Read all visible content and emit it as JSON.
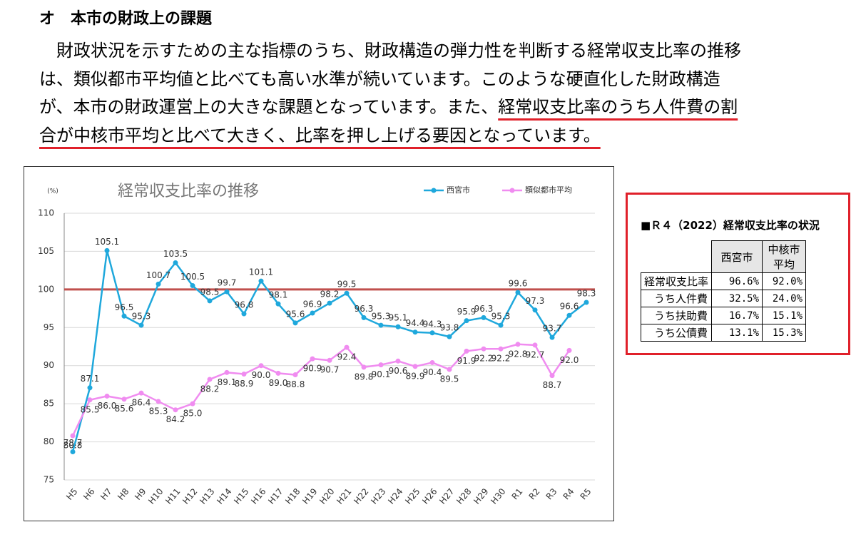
{
  "heading": "オ　本市の財政上の課題",
  "paragraph": {
    "plain": "財政状況を示すための主な指標のうち、財政構造の弾力性を判断する経常収支比率の推移は、類似都市平均値と比べても高い水準が続いています。このような硬直化した財政構造が、本市の財政運営上の大きな課題となっています。また、",
    "underlined": "経常収支比率のうち人件費の割合が中核市平均と比べて大きく、比率を押し上げる要因となっています。"
  },
  "chart_data": {
    "type": "line",
    "title": "経常収支比率の推移",
    "y_label": "(%)",
    "categories": [
      "H5",
      "H6",
      "H7",
      "H8",
      "H9",
      "H10",
      "H11",
      "H12",
      "H13",
      "H14",
      "H15",
      "H16",
      "H17",
      "H18",
      "H19",
      "H20",
      "H21",
      "H22",
      "H23",
      "H24",
      "H25",
      "H26",
      "H27",
      "H28",
      "H29",
      "H30",
      "R1",
      "R2",
      "R3",
      "R4",
      "R5"
    ],
    "series": [
      {
        "name": "西宮市",
        "color": "#1fa8dc",
        "values": [
          78.7,
          87.1,
          105.1,
          96.5,
          95.3,
          100.7,
          103.5,
          100.5,
          98.5,
          99.7,
          96.8,
          101.1,
          98.1,
          95.6,
          96.9,
          98.2,
          99.5,
          96.3,
          95.3,
          95.1,
          94.4,
          94.3,
          93.8,
          95.9,
          96.3,
          95.3,
          99.6,
          97.3,
          93.7,
          96.6,
          98.3
        ],
        "value_labels": [
          "78.7",
          "87.1",
          "105.1",
          "96.5",
          "95.3",
          "100.7",
          "103.5",
          "100.5",
          "98.5",
          "99.7",
          "96.8",
          "101.1",
          "98.1",
          "95.6",
          "96.9",
          "98.2",
          "99.5",
          "96.3",
          "95.3",
          "95.1",
          "94.4",
          "94.3",
          "93.8",
          "95.9",
          "96.3",
          "95.3",
          "99.6",
          "97.3",
          "93.7",
          "96.6",
          "98.3"
        ]
      },
      {
        "name": "類似都市平均",
        "color": "#f08cf0",
        "values": [
          80.8,
          85.5,
          86.0,
          85.6,
          86.4,
          85.3,
          84.2,
          85.0,
          88.2,
          89.1,
          88.9,
          90.0,
          89.0,
          88.8,
          90.9,
          90.7,
          92.4,
          89.8,
          90.1,
          90.6,
          89.9,
          90.4,
          89.5,
          91.9,
          92.2,
          92.2,
          92.8,
          92.7,
          88.7,
          92.0,
          null
        ],
        "value_labels": [
          "80.8",
          "85.5",
          "86.0",
          "85.6",
          "86.4",
          "85.3",
          "84.2",
          "85.0",
          "88.2",
          "89.1",
          "88.9",
          "90.0",
          "89.0",
          "88.8",
          "90.9",
          "90.7",
          "92.4",
          "89.8",
          "90.1",
          "90.6",
          "89.9",
          "90.4",
          "89.5",
          "91.9",
          "92.2",
          "92.2",
          "92.8",
          "92.7",
          "88.7",
          "92.0",
          null
        ]
      }
    ],
    "reference_line": {
      "value": 100,
      "color": "#c0504d"
    },
    "ylim": [
      75,
      110
    ],
    "yticks": [
      75,
      80,
      85,
      90,
      95,
      100,
      105,
      110
    ],
    "grid": true,
    "legend": "top-right"
  },
  "table": {
    "title": "■Ｒ４（2022）経常収支比率の状況",
    "columns": [
      "西宮市",
      "中核市平均"
    ],
    "rows": [
      [
        "経常収支比率",
        "96.6%",
        "92.0%"
      ],
      [
        "うち人件費",
        "32.5%",
        "24.0%"
      ],
      [
        "うち扶助費",
        "16.7%",
        "15.1%"
      ],
      [
        "うち公債費",
        "13.1%",
        "15.3%"
      ]
    ]
  }
}
